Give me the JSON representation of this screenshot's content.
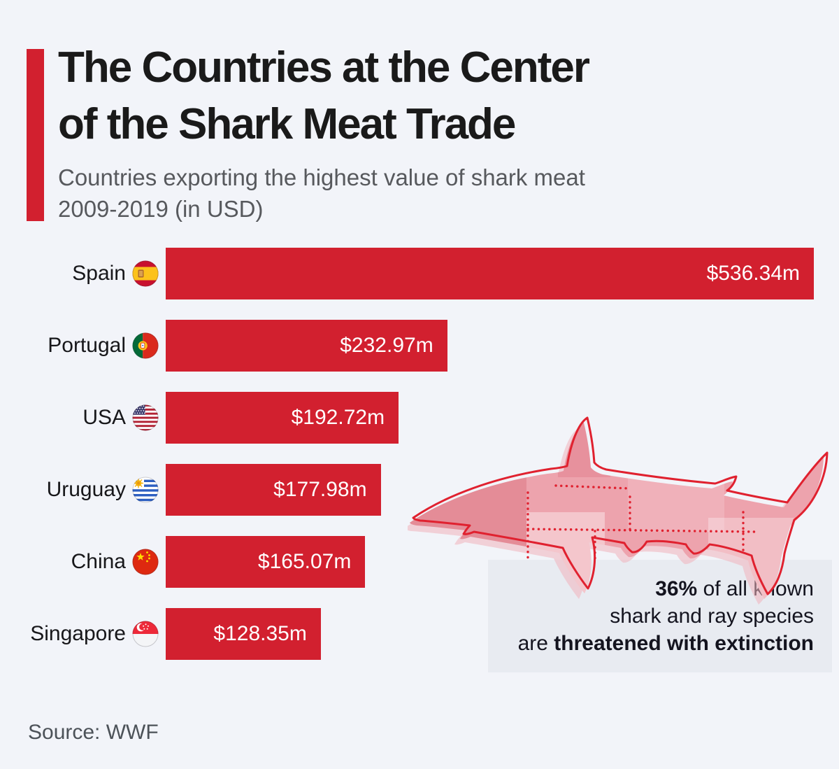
{
  "header": {
    "title_line1": "The Countries at the Center",
    "title_line2": "of the Shark Meat Trade",
    "subtitle_line1": "Countries exporting the highest value of shark meat",
    "subtitle_line2": "2009-2019 (in USD)"
  },
  "chart_data": {
    "type": "bar",
    "orientation": "horizontal",
    "title": "The Countries at the Center of the Shark Meat Trade",
    "subtitle": "Countries exporting the highest value of shark meat 2009-2019 (in USD)",
    "unit": "USD millions",
    "categories": [
      "Spain",
      "Portugal",
      "USA",
      "Uruguay",
      "China",
      "Singapore"
    ],
    "values": [
      536.34,
      232.97,
      192.72,
      177.98,
      165.07,
      128.35
    ],
    "value_labels": [
      "$536.34m",
      "$232.97m",
      "$192.72m",
      "$177.98m",
      "$165.07m",
      "$128.35m"
    ],
    "flags": [
      "spain-flag-icon",
      "portugal-flag-icon",
      "usa-flag-icon",
      "uruguay-flag-icon",
      "china-flag-icon",
      "singapore-flag-icon"
    ],
    "xlim": [
      0,
      536.34
    ],
    "grid": false,
    "legend": false,
    "bar_color": "#d2202f",
    "value_label_position": "inside-end"
  },
  "callout": {
    "line1_bold": "36%",
    "line1_rest": " of all known",
    "line2": "shark and ray species",
    "line3_prefix": "are ",
    "line3_bold": "threatened with extinction"
  },
  "illustration": {
    "name": "shark-butcher-cuts-illustration"
  },
  "footer": {
    "source": "Source: WWF"
  },
  "colors": {
    "background": "#f2f4f9",
    "accent": "#d2202f",
    "bar": "#d2202f",
    "callout_bg": "#e8ebf1",
    "shark_outline": "#e0212f",
    "shark_fill": "#eda3ad"
  }
}
